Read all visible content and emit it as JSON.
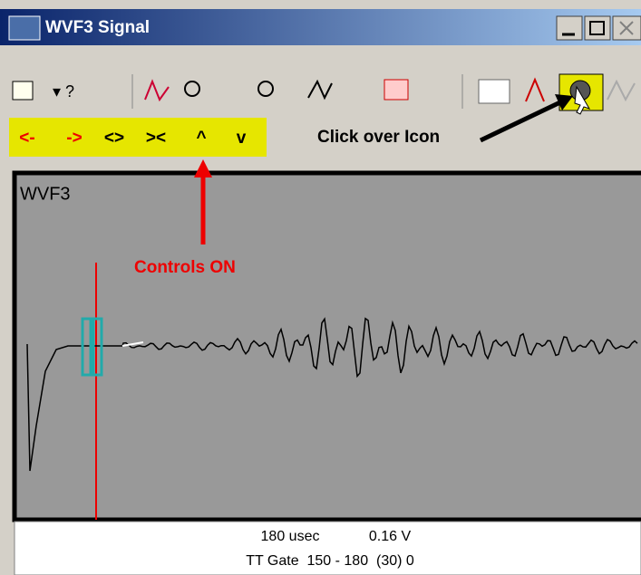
{
  "window": {
    "title": "WVF3 Signal"
  },
  "controls": [
    "<-",
    "->",
    "<>",
    "><",
    "^",
    "v"
  ],
  "annotations": {
    "click": "Click over Icon",
    "controls_on": "Controls ON"
  },
  "plot": {
    "label": "WVF3"
  },
  "status": {
    "time": "180 usec",
    "voltage": "0.16 V",
    "gate": "TT Gate  150 - 180  (30) 0"
  }
}
